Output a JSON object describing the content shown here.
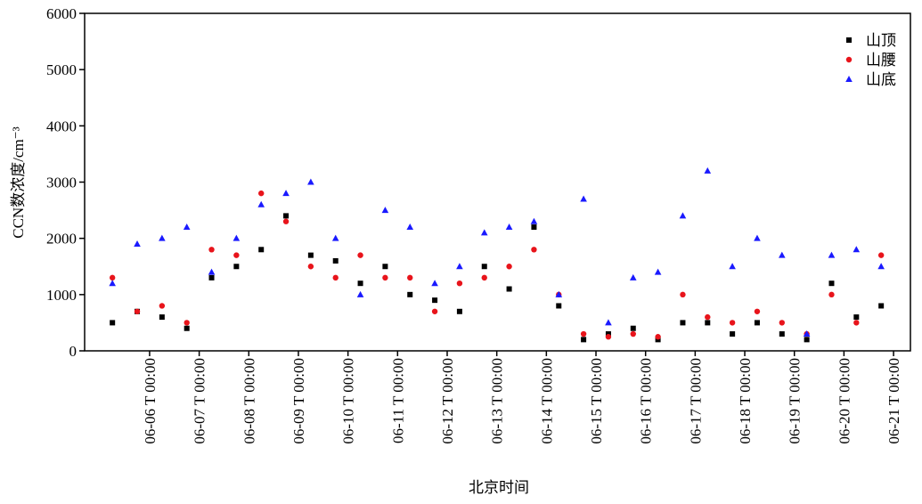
{
  "chart_data": {
    "type": "scatter",
    "xlabel": "北京时间",
    "ylabel": "CCN数浓度/cm⁻³",
    "x": [
      5.25,
      5.75,
      6.25,
      6.75,
      7.25,
      7.75,
      8.25,
      8.75,
      9.25,
      9.75,
      10.25,
      10.75,
      11.25,
      11.75,
      12.25,
      12.75,
      13.25,
      13.75,
      14.25,
      14.75,
      15.25,
      15.75,
      16.25,
      16.75,
      17.25,
      17.75,
      18.25,
      18.75,
      19.25,
      19.75,
      20.25,
      20.75
    ],
    "series": [
      {
        "name": "山顶",
        "color": "#000000",
        "marker": "square",
        "values": [
          500,
          700,
          600,
          400,
          1300,
          1500,
          1800,
          2400,
          1700,
          1600,
          1200,
          1500,
          1000,
          900,
          700,
          1500,
          1100,
          2200,
          800,
          200,
          300,
          400,
          200,
          500,
          500,
          300,
          500,
          300,
          200,
          1200,
          600,
          800
        ]
      },
      {
        "name": "山腰",
        "color": "#e8141b",
        "marker": "circle",
        "values": [
          1300,
          700,
          800,
          500,
          1800,
          1700,
          2800,
          2300,
          1500,
          1300,
          1700,
          1300,
          1300,
          700,
          1200,
          1300,
          1500,
          1800,
          1000,
          300,
          250,
          300,
          250,
          1000,
          600,
          500,
          700,
          500,
          300,
          1000,
          500,
          1700
        ]
      },
      {
        "name": "山底",
        "color": "#1a1aff",
        "marker": "triangle",
        "values": [
          1200,
          1900,
          2000,
          2200,
          1400,
          2000,
          2600,
          2800,
          3000,
          2000,
          1000,
          2500,
          2200,
          1200,
          1500,
          2100,
          2200,
          2300,
          1000,
          2700,
          500,
          1300,
          1400,
          2400,
          3200,
          1500,
          2000,
          1700,
          300,
          1700,
          1800,
          1500
        ]
      }
    ],
    "xlim": [
      4.69,
      21.34
    ],
    "xticks": [
      {
        "value": 6,
        "label": "06-06 T 00:00"
      },
      {
        "value": 7,
        "label": "06-07 T 00:00"
      },
      {
        "value": 8,
        "label": "06-08 T 00:00"
      },
      {
        "value": 9,
        "label": "06-09 T 00:00"
      },
      {
        "value": 10,
        "label": "06-10 T 00:00"
      },
      {
        "value": 11,
        "label": "06-11 T 00:00"
      },
      {
        "value": 12,
        "label": "06-12 T 00:00"
      },
      {
        "value": 13,
        "label": "06-13 T 00:00"
      },
      {
        "value": 14,
        "label": "06-14 T 00:00"
      },
      {
        "value": 15,
        "label": "06-15 T 00:00"
      },
      {
        "value": 16,
        "label": "06-16 T 00:00"
      },
      {
        "value": 17,
        "label": "06-17 T 00:00"
      },
      {
        "value": 18,
        "label": "06-18 T 00:00"
      },
      {
        "value": 19,
        "label": "06-19 T 00:00"
      },
      {
        "value": 20,
        "label": "06-20 T 00:00"
      },
      {
        "value": 21,
        "label": "06-21 T 00:00"
      }
    ],
    "ylim": [
      0,
      6000
    ],
    "yticks": [
      0,
      1000,
      2000,
      3000,
      4000,
      5000,
      6000
    ],
    "grid": false,
    "legend": "upper right"
  }
}
